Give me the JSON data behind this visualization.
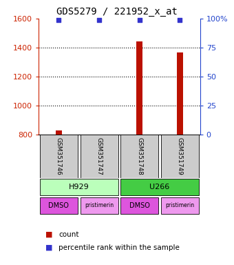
{
  "title": "GDS5279 / 221952_x_at",
  "samples": [
    "GSM351746",
    "GSM351747",
    "GSM351748",
    "GSM351749"
  ],
  "count_values": [
    830,
    802,
    1445,
    1365
  ],
  "percentile_values": [
    99,
    99,
    99,
    99
  ],
  "ylim_left": [
    800,
    1600
  ],
  "ylim_right": [
    0,
    100
  ],
  "yticks_left": [
    800,
    1000,
    1200,
    1400,
    1600
  ],
  "yticks_right": [
    0,
    25,
    50,
    75,
    100
  ],
  "ytick_right_labels": [
    "0",
    "25",
    "50",
    "75",
    "100%"
  ],
  "bar_color": "#bb1100",
  "percentile_color": "#3333cc",
  "bar_width": 0.15,
  "cell_line_spans": [
    [
      0,
      1,
      "H929",
      "#bbffbb"
    ],
    [
      2,
      3,
      "U266",
      "#44cc44"
    ]
  ],
  "agents": [
    "DMSO",
    "pristimerin",
    "DMSO",
    "pristimerin"
  ],
  "agent_colors": [
    "#dd55dd",
    "#ee99ee",
    "#dd55dd",
    "#ee99ee"
  ],
  "sample_box_color": "#cccccc",
  "left_axis_color": "#cc2200",
  "right_axis_color": "#2244cc",
  "title_fontsize": 10,
  "tick_fontsize": 8,
  "grid_dotted_at": [
    1000,
    1200,
    1400
  ],
  "n_samples": 4
}
